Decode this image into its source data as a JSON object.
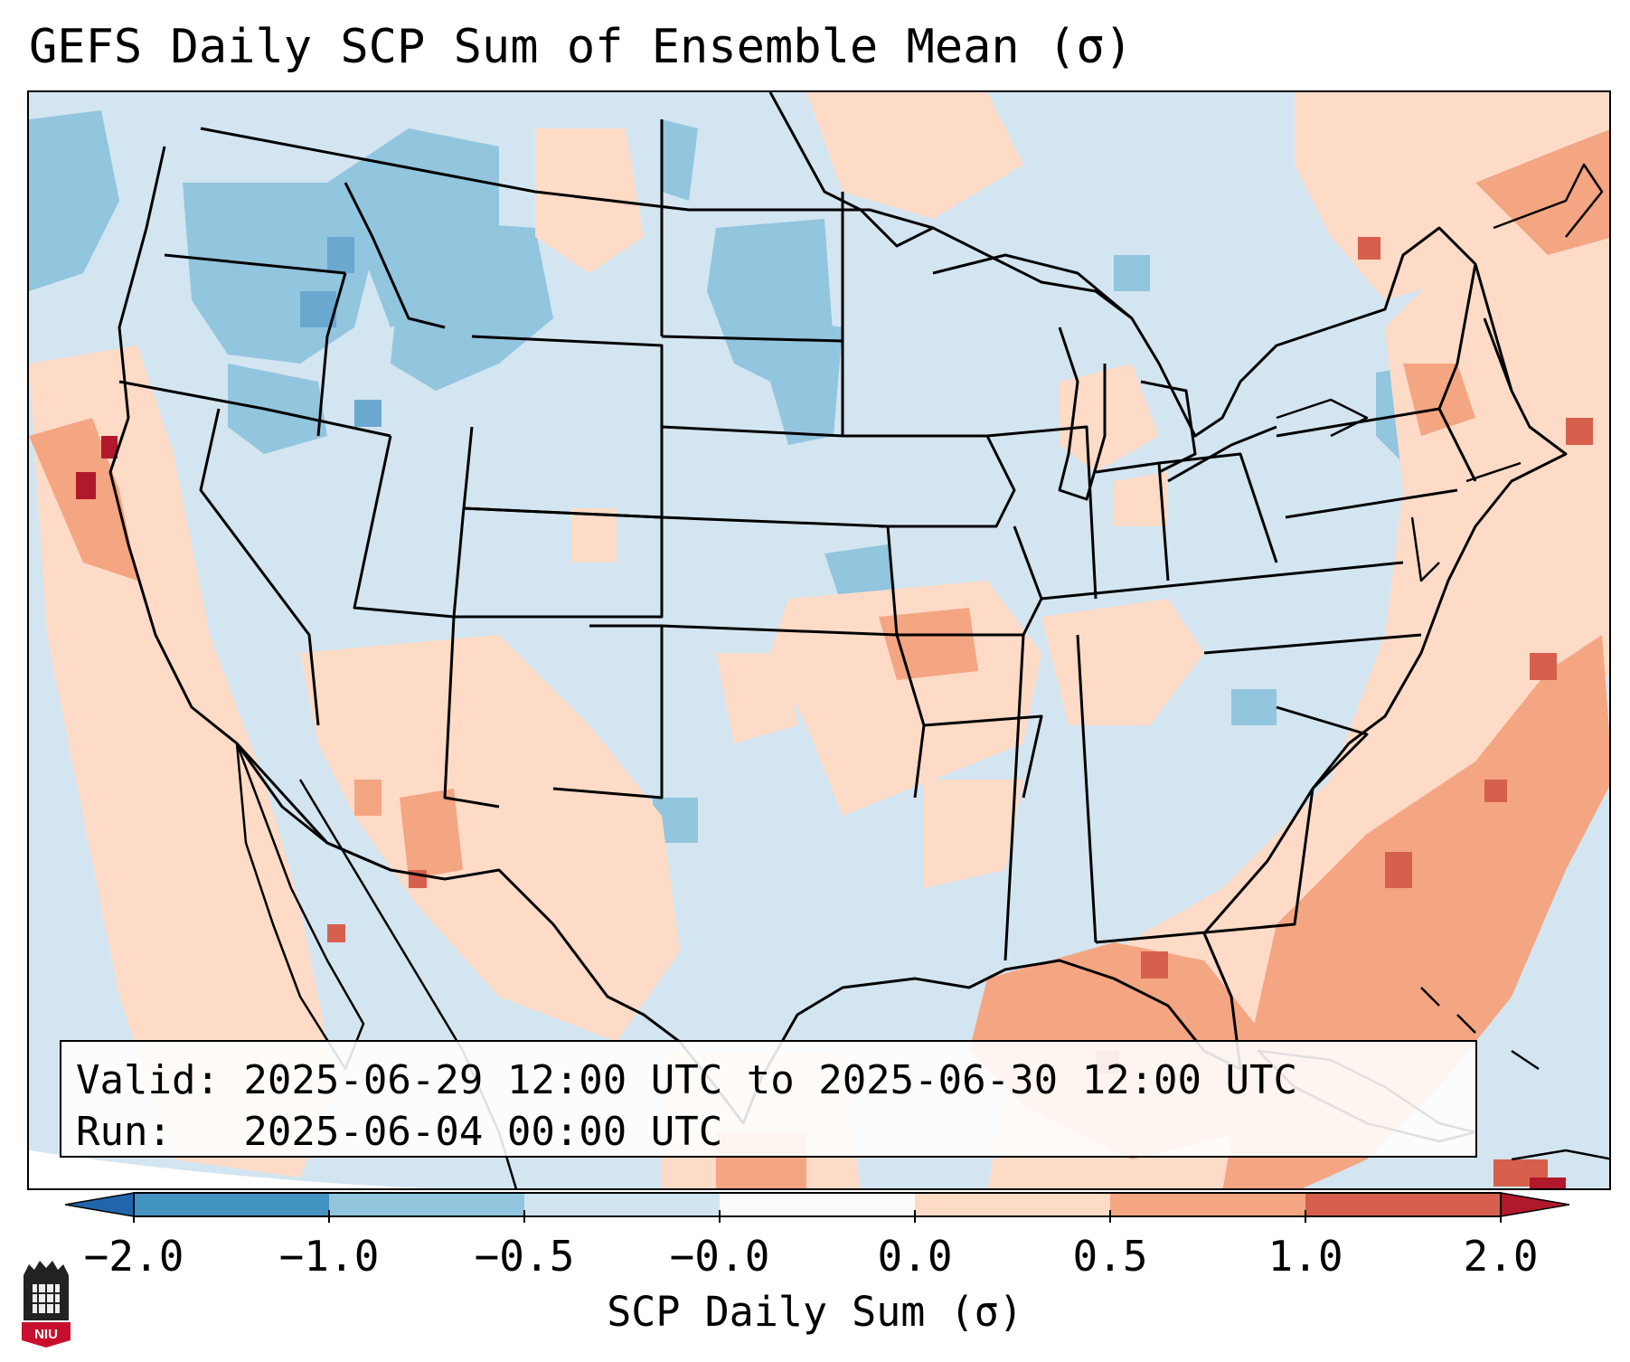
{
  "title": "GEFS Daily SCP Sum of Ensemble Mean (σ)",
  "info": {
    "valid_line": "Valid: 2025-06-29 12:00 UTC to 2025-06-30 12:00 UTC",
    "run_line": "Run:   2025-06-04 00:00 UTC"
  },
  "colorbar": {
    "label": "SCP Daily Sum (σ)",
    "ticks": [
      "−2.0",
      "−1.0",
      "−0.5",
      "−0.0",
      "0.0",
      "0.5",
      "1.0",
      "2.0"
    ],
    "colors": [
      "#2166ac",
      "#4393c3",
      "#92c5de",
      "#d1e5f0",
      "#fbfbfb",
      "#fddbc7",
      "#f4a582",
      "#d6604d",
      "#b2182b"
    ]
  },
  "map_colors": {
    "background": "#d3e5f0",
    "ocean_outside": "#ffffff",
    "low": "#92c5de",
    "very_low": "#6aa8d0",
    "high": "#fddbc7",
    "higher": "#f4a582",
    "highest": "#d6604d",
    "extreme": "#b2182b",
    "boundary": "#000000"
  },
  "logo": {
    "text": "NIU"
  }
}
